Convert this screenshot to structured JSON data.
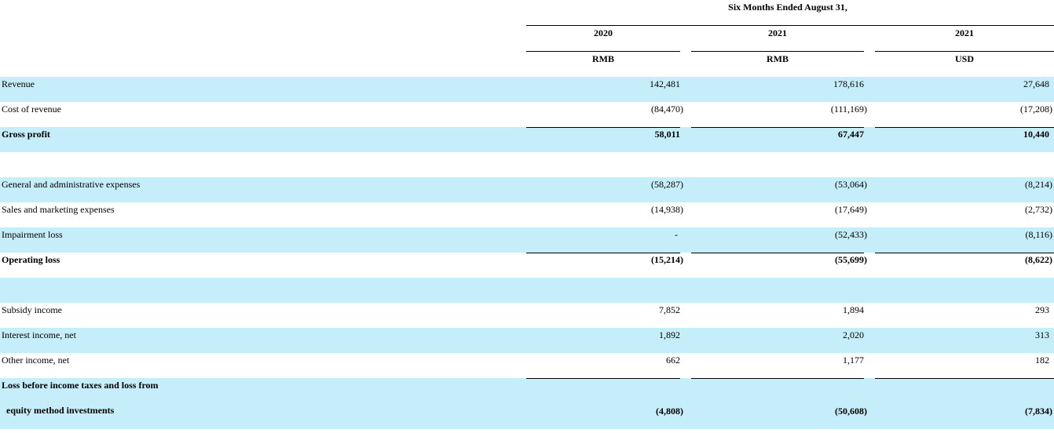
{
  "header": {
    "title": "Six Months Ended August 31,",
    "years": [
      "2020",
      "2021",
      "2021"
    ],
    "currencies": [
      "RMB",
      "RMB",
      "USD"
    ]
  },
  "sections": [
    [
      {
        "label": "Revenue",
        "values": [
          "142,481",
          "178,616",
          "27,648"
        ]
      },
      {
        "label": "Cost of revenue",
        "values": [
          "(84,470)",
          "(111,169)",
          "(17,208)"
        ]
      },
      {
        "label": "Gross profit",
        "values": [
          "58,011",
          "67,447",
          "10,440"
        ],
        "total": true
      }
    ],
    [
      {
        "label": "General and administrative expenses",
        "values": [
          "(58,287)",
          "(53,064)",
          "(8,214)"
        ]
      },
      {
        "label": "Sales and marketing expenses",
        "values": [
          "(14,938)",
          "(17,649)",
          "(2,732)"
        ]
      },
      {
        "label": "Impairment loss",
        "values": [
          "-",
          "(52,433)",
          "(8,116)"
        ]
      },
      {
        "label": "Operating loss",
        "values": [
          "(15,214)",
          "(55,699)",
          "(8,622)"
        ],
        "total": true
      }
    ],
    [
      {
        "label": "Subsidy income",
        "values": [
          "7,852",
          "1,894",
          "293"
        ]
      },
      {
        "label": "Interest income, net",
        "values": [
          "1,892",
          "2,020",
          "313"
        ]
      },
      {
        "label": "Other income, net",
        "values": [
          "662",
          "1,177",
          "182"
        ]
      },
      {
        "label_lines": [
          "Loss before income taxes and loss from",
          "equity method investments"
        ],
        "values": [
          "(4,808)",
          "(50,608)",
          "(7,834)"
        ],
        "total": true
      }
    ]
  ]
}
